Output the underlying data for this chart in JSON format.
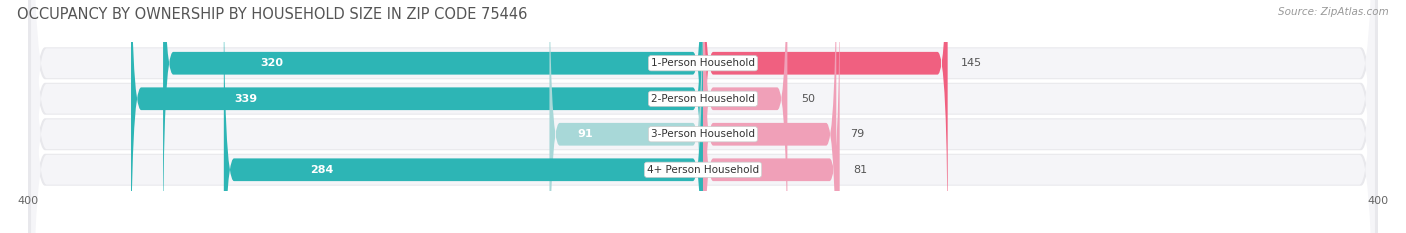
{
  "title": "OCCUPANCY BY OWNERSHIP BY HOUSEHOLD SIZE IN ZIP CODE 75446",
  "source": "Source: ZipAtlas.com",
  "categories": [
    "1-Person Household",
    "2-Person Household",
    "3-Person Household",
    "4+ Person Household"
  ],
  "owner_values": [
    320,
    339,
    91,
    284
  ],
  "renter_values": [
    145,
    50,
    79,
    81
  ],
  "owner_color_dark": "#2db5b5",
  "owner_color_light": "#a8d8d8",
  "renter_color_dark": "#f06080",
  "renter_color_light": "#f0a0b8",
  "row_bg_color": "#e8e8ec",
  "row_inner_color": "#f5f5f8",
  "xlim": 400,
  "title_fontsize": 10.5,
  "label_fontsize": 8,
  "tick_fontsize": 8,
  "source_fontsize": 7.5,
  "owner_light_indices": [
    2
  ],
  "renter_light_indices": [
    1,
    2,
    3
  ]
}
